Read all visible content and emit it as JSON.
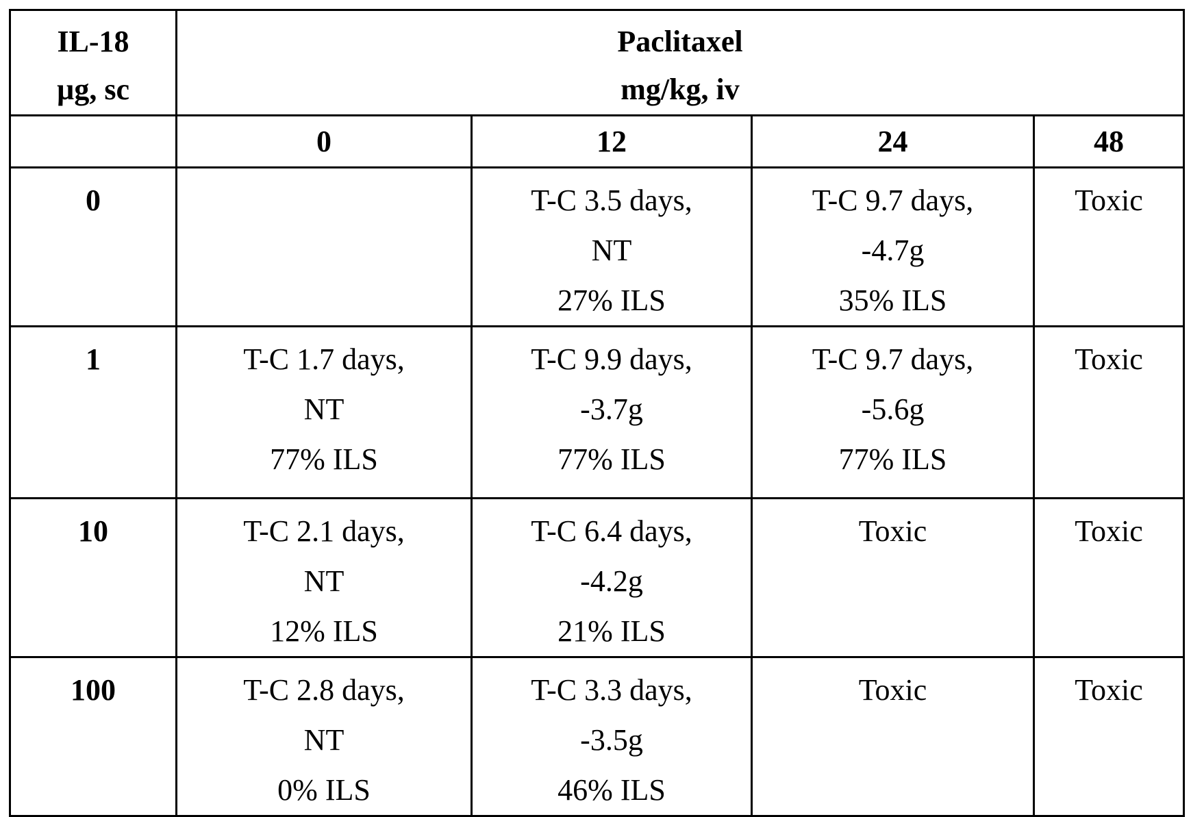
{
  "header": {
    "row_label": [
      "IL-18",
      "µg, sc"
    ],
    "column_group": [
      "Paclitaxel",
      "mg/kg, iv"
    ]
  },
  "table": {
    "columns": [
      "0",
      "12",
      "24",
      "48"
    ],
    "rows": [
      {
        "label": "0",
        "cells": [
          [],
          [
            "T-C 3.5 days,",
            "NT",
            "27% ILS"
          ],
          [
            "T-C 9.7 days,",
            "-4.7g",
            "35% ILS"
          ],
          [
            "Toxic"
          ]
        ]
      },
      {
        "label": "1",
        "cells": [
          [
            "T-C 1.7 days,",
            "NT",
            "77% ILS"
          ],
          [
            "T-C 9.9 days,",
            "-3.7g",
            "77% ILS"
          ],
          [
            "T-C 9.7 days,",
            "-5.6g",
            "77% ILS"
          ],
          [
            "Toxic"
          ]
        ]
      },
      {
        "label": "10",
        "cells": [
          [
            "T-C 2.1 days,",
            "NT",
            "12% ILS"
          ],
          [
            "T-C 6.4 days,",
            "-4.2g",
            "21% ILS"
          ],
          [
            "Toxic"
          ],
          [
            "Toxic"
          ]
        ]
      },
      {
        "label": "100",
        "cells": [
          [
            "T-C 2.8 days,",
            "NT",
            "0% ILS"
          ],
          [
            "T-C 3.3 days,",
            "-3.5g",
            "46% ILS"
          ],
          [
            "Toxic"
          ],
          [
            "Toxic"
          ]
        ]
      }
    ]
  }
}
